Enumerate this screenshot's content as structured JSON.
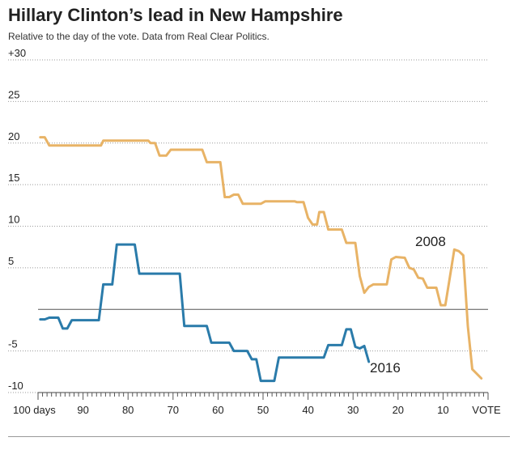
{
  "title": "Hillary Clinton’s lead in New Hampshire",
  "subtitle": "Relative to the day of the vote. Data from Real Clear Politics.",
  "colors": {
    "series_2008": "#E8B366",
    "series_2016": "#2A7BAA",
    "grid": "#9A9A9A",
    "zero_line": "#555555"
  },
  "chart_data": {
    "type": "line",
    "xlabel": "",
    "ylabel": "",
    "xlim": [
      100,
      0
    ],
    "ylim": [
      -10,
      30
    ],
    "grid": true,
    "y_tick_labels": [
      "+30",
      "25",
      "20",
      "15",
      "10",
      "5",
      "-5",
      "-10"
    ],
    "y_tick_values": [
      30,
      25,
      20,
      15,
      10,
      5,
      -5,
      -10
    ],
    "x_tick_labels": [
      "100 days",
      "90",
      "80",
      "70",
      "60",
      "50",
      "40",
      "30",
      "20",
      "10",
      "VOTE"
    ],
    "x_tick_values": [
      100,
      90,
      80,
      70,
      60,
      50,
      40,
      30,
      20,
      10,
      0
    ],
    "series": [
      {
        "name": "2008",
        "values": [
          [
            99.5,
            20.7
          ],
          [
            98.5,
            20.7
          ],
          [
            97.5,
            19.7
          ],
          [
            86,
            19.7
          ],
          [
            85.5,
            20.3
          ],
          [
            75.5,
            20.3
          ],
          [
            75,
            20.0
          ],
          [
            74,
            20.0
          ],
          [
            73,
            18.5
          ],
          [
            71.5,
            18.5
          ],
          [
            70.5,
            19.2
          ],
          [
            63.5,
            19.2
          ],
          [
            62.5,
            17.7
          ],
          [
            59.5,
            17.7
          ],
          [
            58.5,
            13.5
          ],
          [
            57.5,
            13.5
          ],
          [
            56.5,
            13.8
          ],
          [
            55.5,
            13.8
          ],
          [
            54.5,
            12.7
          ],
          [
            50.5,
            12.7
          ],
          [
            49.5,
            13.0
          ],
          [
            43,
            13.0
          ],
          [
            42.5,
            12.9
          ],
          [
            41,
            12.9
          ],
          [
            40,
            11.0
          ],
          [
            39,
            10.2
          ],
          [
            38,
            10.2
          ],
          [
            37.5,
            11.7
          ],
          [
            36.5,
            11.7
          ],
          [
            35.5,
            9.6
          ],
          [
            32.5,
            9.6
          ],
          [
            31.5,
            8.0
          ],
          [
            29.5,
            8.0
          ],
          [
            28.5,
            4.0
          ],
          [
            27.5,
            2.0
          ],
          [
            26.5,
            2.7
          ],
          [
            25.5,
            3.0
          ],
          [
            22.5,
            3.0
          ],
          [
            21.5,
            6.0
          ],
          [
            20.5,
            6.3
          ],
          [
            18.5,
            6.2
          ],
          [
            17.5,
            5.0
          ],
          [
            16.5,
            4.8
          ],
          [
            15.5,
            3.8
          ],
          [
            14.5,
            3.7
          ],
          [
            13.5,
            2.6
          ],
          [
            11.5,
            2.6
          ],
          [
            10.5,
            0.5
          ],
          [
            9.5,
            0.5
          ],
          [
            8.5,
            3.8
          ],
          [
            7.5,
            7.2
          ],
          [
            6.5,
            7.0
          ],
          [
            5.5,
            6.5
          ],
          [
            4.5,
            -2.0
          ],
          [
            3.5,
            -7.2
          ],
          [
            1.5,
            -8.3
          ]
        ]
      },
      {
        "name": "2016",
        "values": [
          [
            99.5,
            -1.2
          ],
          [
            98.5,
            -1.2
          ],
          [
            97.5,
            -1.0
          ],
          [
            95.5,
            -1.0
          ],
          [
            94.5,
            -2.3
          ],
          [
            93.5,
            -2.3
          ],
          [
            92.5,
            -1.3
          ],
          [
            86.5,
            -1.3
          ],
          [
            85.5,
            3.0
          ],
          [
            83.5,
            3.0
          ],
          [
            82.5,
            7.8
          ],
          [
            78.5,
            7.8
          ],
          [
            77.5,
            4.3
          ],
          [
            68.5,
            4.3
          ],
          [
            67.5,
            -2.0
          ],
          [
            62.5,
            -2.0
          ],
          [
            61.5,
            -4.0
          ],
          [
            57.5,
            -4.0
          ],
          [
            56.5,
            -5.0
          ],
          [
            53.5,
            -5.0
          ],
          [
            52.5,
            -6.0
          ],
          [
            51.5,
            -6.0
          ],
          [
            50.5,
            -8.6
          ],
          [
            47.5,
            -8.6
          ],
          [
            46.5,
            -5.8
          ],
          [
            36.5,
            -5.8
          ],
          [
            35.5,
            -4.3
          ],
          [
            32.5,
            -4.3
          ],
          [
            31.5,
            -2.4
          ],
          [
            30.5,
            -2.4
          ],
          [
            29.5,
            -4.5
          ],
          [
            28.5,
            -4.7
          ],
          [
            27.5,
            -4.4
          ],
          [
            26.5,
            -6.3
          ]
        ]
      }
    ]
  }
}
